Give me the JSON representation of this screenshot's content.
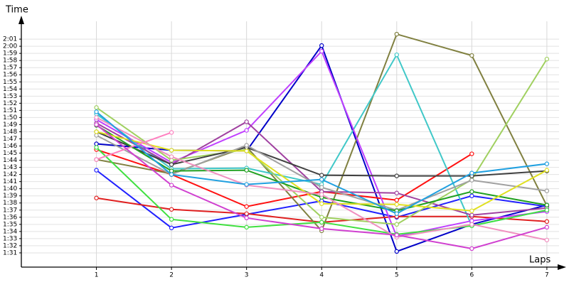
{
  "chart_data": {
    "type": "line",
    "y_label": "Time",
    "x_label": "Laps",
    "x": [
      1,
      2,
      3,
      4,
      5,
      6,
      7
    ],
    "xlim": [
      0,
      7.2
    ],
    "xticks": [
      1,
      2,
      3,
      4,
      5,
      6,
      7
    ],
    "ylim": [
      89,
      124
    ],
    "yticks": [
      {
        "value": 91,
        "label": "1:31"
      },
      {
        "value": 92,
        "label": "1:32"
      },
      {
        "value": 93,
        "label": "1:33"
      },
      {
        "value": 94,
        "label": "1:34"
      },
      {
        "value": 95,
        "label": "1:35"
      },
      {
        "value": 96,
        "label": "1:36"
      },
      {
        "value": 97,
        "label": "1:37"
      },
      {
        "value": 98,
        "label": "1:38"
      },
      {
        "value": 99,
        "label": "1:39"
      },
      {
        "value": 100,
        "label": "1:40"
      },
      {
        "value": 101,
        "label": "1:41"
      },
      {
        "value": 102,
        "label": "1:42"
      },
      {
        "value": 103,
        "label": "1:43"
      },
      {
        "value": 104,
        "label": "1:44"
      },
      {
        "value": 105,
        "label": "1:45"
      },
      {
        "value": 106,
        "label": "1:46"
      },
      {
        "value": 107,
        "label": "1:47"
      },
      {
        "value": 108,
        "label": "1:48"
      },
      {
        "value": 109,
        "label": "1:49"
      },
      {
        "value": 110,
        "label": "1:50"
      },
      {
        "value": 111,
        "label": "1:51"
      },
      {
        "value": 112,
        "label": "1:52"
      },
      {
        "value": 113,
        "label": "1:53"
      },
      {
        "value": 114,
        "label": "1:54"
      },
      {
        "value": 115,
        "label": "1:55"
      },
      {
        "value": 116,
        "label": "1:56"
      },
      {
        "value": 117,
        "label": "1:57"
      },
      {
        "value": 118,
        "label": "1:58"
      },
      {
        "value": 119,
        "label": "1:59"
      },
      {
        "value": 120,
        "label": "2:00"
      },
      {
        "value": 121,
        "label": "2:01"
      }
    ],
    "grid": true,
    "series": [
      {
        "color": "#0000c8",
        "values": [
          106.3,
          105.4,
          105.3,
          120.1,
          91.2,
          95.0,
          97.7
        ]
      },
      {
        "color": "#2020ff",
        "values": [
          102.6,
          94.5,
          96.4,
          98.3,
          96.0,
          99.0,
          97.5
        ]
      },
      {
        "color": "#e02020",
        "values": [
          98.7,
          97.1,
          96.5,
          95.3,
          96.1,
          96.1,
          95.4
        ]
      },
      {
        "color": "#ff1010",
        "values": [
          105.5,
          102.0,
          97.5,
          99.6,
          98.4,
          104.9,
          null
        ]
      },
      {
        "color": "#808040",
        "values": [
          104.1,
          102.1,
          105.9,
          94.1,
          121.7,
          118.7,
          97.6
        ]
      },
      {
        "color": "#40c8c8",
        "values": [
          110.5,
          102.8,
          102.9,
          100.6,
          118.8,
          94.8,
          97.0
        ]
      },
      {
        "color": "#c040ff",
        "values": [
          109.7,
          103.7,
          108.2,
          119.3,
          93.3,
          95.5,
          96.8
        ]
      },
      {
        "color": "#a040a0",
        "values": [
          109.2,
          103.4,
          109.4,
          99.6,
          99.4,
          96.3,
          97.3
        ]
      },
      {
        "color": "#a0d060",
        "values": [
          111.4,
          104.0,
          105.5,
          96.0,
          95.0,
          101.3,
          118.2
        ]
      },
      {
        "color": "#404040",
        "values": [
          108.0,
          103.4,
          105.8,
          101.9,
          101.8,
          101.8,
          102.5
        ]
      },
      {
        "color": "#a0a0a0",
        "values": [
          107.5,
          102.0,
          106.1,
          100.2,
          97.0,
          101.2,
          99.7
        ]
      },
      {
        "color": "#20a020",
        "values": [
          108.9,
          102.5,
          102.6,
          98.8,
          96.9,
          99.6,
          97.7
        ]
      },
      {
        "color": "#40e040",
        "values": [
          105.8,
          95.7,
          94.6,
          95.3,
          93.6,
          94.8,
          97.0
        ]
      },
      {
        "color": "#e0e020",
        "values": [
          108.0,
          105.4,
          105.3,
          97.9,
          97.8,
          96.9,
          102.6
        ]
      },
      {
        "color": "#ff80c0",
        "values": [
          104.1,
          107.9,
          null,
          null,
          null,
          null,
          null
        ]
      },
      {
        "color": "#f090c0",
        "values": [
          110.0,
          104.5,
          100.5,
          99.2,
          93.2,
          95.0,
          92.8
        ]
      },
      {
        "color": "#20a0e0",
        "values": [
          110.8,
          102.0,
          100.6,
          101.3,
          96.5,
          102.2,
          103.5
        ]
      },
      {
        "color": "#d040d0",
        "values": [
          109.0,
          100.5,
          95.9,
          94.4,
          93.5,
          91.6,
          94.6
        ]
      }
    ]
  }
}
